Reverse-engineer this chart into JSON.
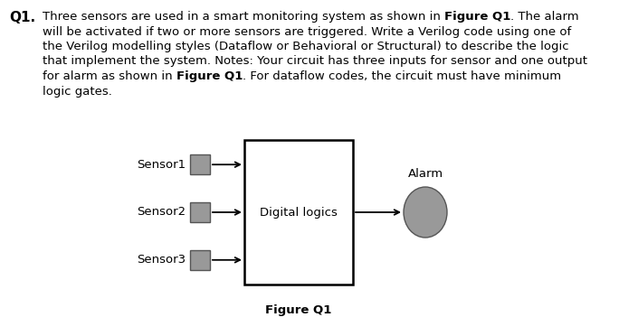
{
  "q_label": "Q1.",
  "lines": [
    [
      [
        "Three sensors are used in a smart monitoring system as shown in ",
        false
      ],
      [
        "Figure Q1",
        true
      ],
      [
        ". The alarm",
        false
      ]
    ],
    [
      [
        "will be activated if two or more sensors are triggered. Write a Verilog code using one of",
        false
      ]
    ],
    [
      [
        "the Verilog modelling styles (Dataflow or Behavioral or Structural) to describe the logic",
        false
      ]
    ],
    [
      [
        "that implement the system. Notes: Your circuit has three inputs for sensor and one output",
        false
      ]
    ],
    [
      [
        "for alarm as shown in ",
        false
      ],
      [
        "Figure Q1",
        true
      ],
      [
        ". For dataflow codes, the circuit must have minimum",
        false
      ]
    ],
    [
      [
        "logic gates.",
        false
      ]
    ]
  ],
  "sensors": [
    "Sensor1",
    "Sensor2",
    "Sensor3"
  ],
  "box_label": "Digital logics",
  "output_label": "Alarm",
  "figure_label": "Figure Q1",
  "bg_color": "#ffffff",
  "text_color": "#000000",
  "sensor_box_color": "#999999",
  "ellipse_color": "#999999",
  "body_fontsize": 9.5,
  "q_fontsize": 11.0,
  "diagram_fontsize": 9.5,
  "figure_fontsize": 9.5
}
